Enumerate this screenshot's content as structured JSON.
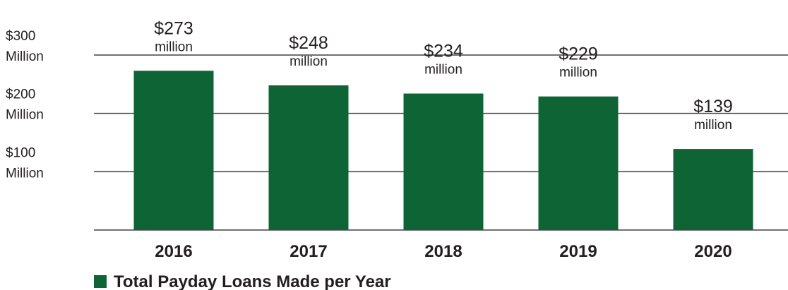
{
  "chart_data": {
    "type": "bar",
    "categories": [
      "2016",
      "2017",
      "2018",
      "2019",
      "2020"
    ],
    "series": [
      {
        "name": "Total Payday Loans Made per Year",
        "values": [
          273,
          248,
          234,
          229,
          139
        ],
        "color": "#0f6435"
      }
    ],
    "value_unit": "million",
    "data_labels": [
      {
        "value": "$273",
        "unit": "million"
      },
      {
        "value": "$248",
        "unit": "million"
      },
      {
        "value": "$234",
        "unit": "million"
      },
      {
        "value": "$229",
        "unit": "million"
      },
      {
        "value": "$139",
        "unit": "million"
      }
    ],
    "y_ticks": [
      {
        "value": 300,
        "line1": "$300",
        "line2": "Million"
      },
      {
        "value": 200,
        "line1": "$200",
        "line2": "Million"
      },
      {
        "value": 100,
        "line1": "$100",
        "line2": "Million"
      }
    ],
    "ylim": [
      0,
      300
    ],
    "grid": true,
    "legend_position": "bottom-left",
    "title": "",
    "xlabel": "",
    "ylabel": ""
  }
}
